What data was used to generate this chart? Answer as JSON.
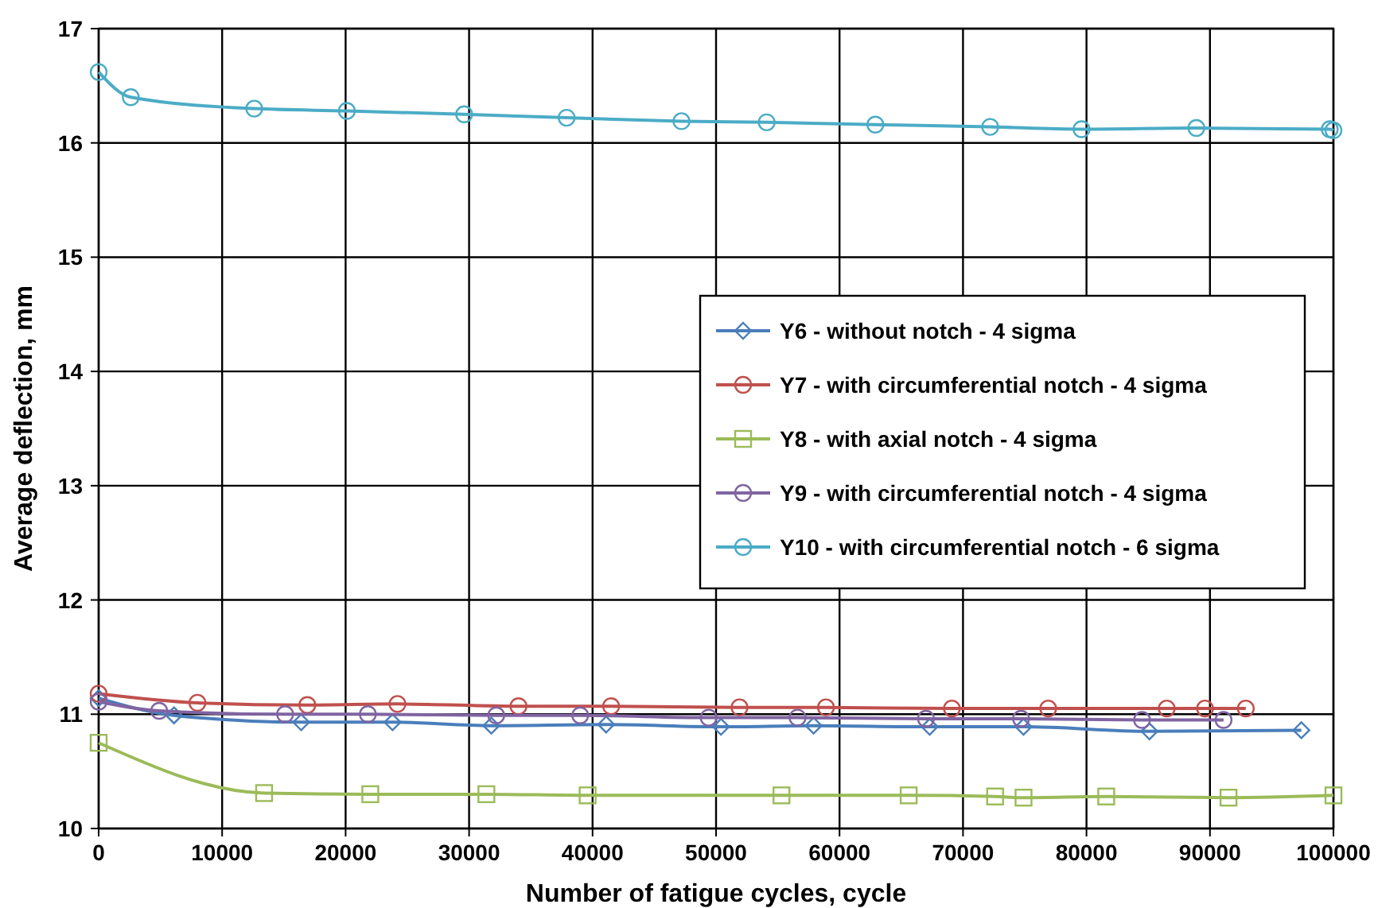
{
  "chart_data": {
    "type": "line",
    "xlabel": "Number of fatigue cycles, cycle",
    "ylabel": "Average deflection, mm",
    "xlim": [
      0,
      100000
    ],
    "xticks": [
      0,
      10000,
      20000,
      30000,
      40000,
      50000,
      60000,
      70000,
      80000,
      90000,
      100000
    ],
    "ylim": [
      10,
      17
    ],
    "yticks": [
      10,
      11,
      12,
      13,
      14,
      15,
      16,
      17
    ],
    "grid": true,
    "legend": "right",
    "series": [
      {
        "name": "Y6 - without notch - 4 sigma",
        "color": "#4a7ebb",
        "marker": "diamond",
        "x": [
          0,
          6100,
          16400,
          23800,
          31800,
          41100,
          50400,
          57900,
          67300,
          74900,
          85100,
          97400
        ],
        "values": [
          11.14,
          10.99,
          10.93,
          10.93,
          10.9,
          10.91,
          10.89,
          10.9,
          10.89,
          10.89,
          10.85,
          10.86
        ]
      },
      {
        "name": "Y7 - with circumferential notch - 4 sigma",
        "color": "#c0504d",
        "marker": "circle",
        "x": [
          0,
          8000,
          16900,
          24200,
          34000,
          41500,
          51900,
          58900,
          69100,
          76900,
          86500,
          89600,
          92900
        ],
        "values": [
          11.18,
          11.1,
          11.08,
          11.09,
          11.07,
          11.07,
          11.06,
          11.06,
          11.05,
          11.05,
          11.05,
          11.05,
          11.05
        ]
      },
      {
        "name": "Y8 - with axial notch - 4 sigma",
        "color": "#9bbb59",
        "marker": "square",
        "x": [
          0,
          13400,
          22000,
          31400,
          39600,
          55300,
          65600,
          72600,
          74900,
          81600,
          91500,
          100000
        ],
        "values": [
          10.75,
          10.31,
          10.3,
          10.3,
          10.29,
          10.29,
          10.29,
          10.28,
          10.27,
          10.28,
          10.27,
          10.29
        ]
      },
      {
        "name": "Y9 - with circumferential notch - 4 sigma",
        "color": "#8064a2",
        "marker": "circle",
        "x": [
          0,
          4900,
          15100,
          21800,
          32200,
          39000,
          49400,
          56600,
          67000,
          74700,
          84500,
          91100
        ],
        "values": [
          11.11,
          11.03,
          11.0,
          11.0,
          10.99,
          10.99,
          10.97,
          10.97,
          10.96,
          10.96,
          10.95,
          10.95
        ]
      },
      {
        "name": "Y10 - with circumferential notch - 6 sigma",
        "color": "#4bacc6",
        "marker": "circle",
        "x": [
          0,
          2600,
          12600,
          20100,
          29600,
          37900,
          47200,
          54100,
          62900,
          72200,
          79600,
          88900,
          99700,
          100000
        ],
        "values": [
          16.62,
          16.4,
          16.3,
          16.28,
          16.25,
          16.22,
          16.19,
          16.18,
          16.16,
          16.14,
          16.12,
          16.13,
          16.12,
          16.11
        ]
      }
    ]
  }
}
